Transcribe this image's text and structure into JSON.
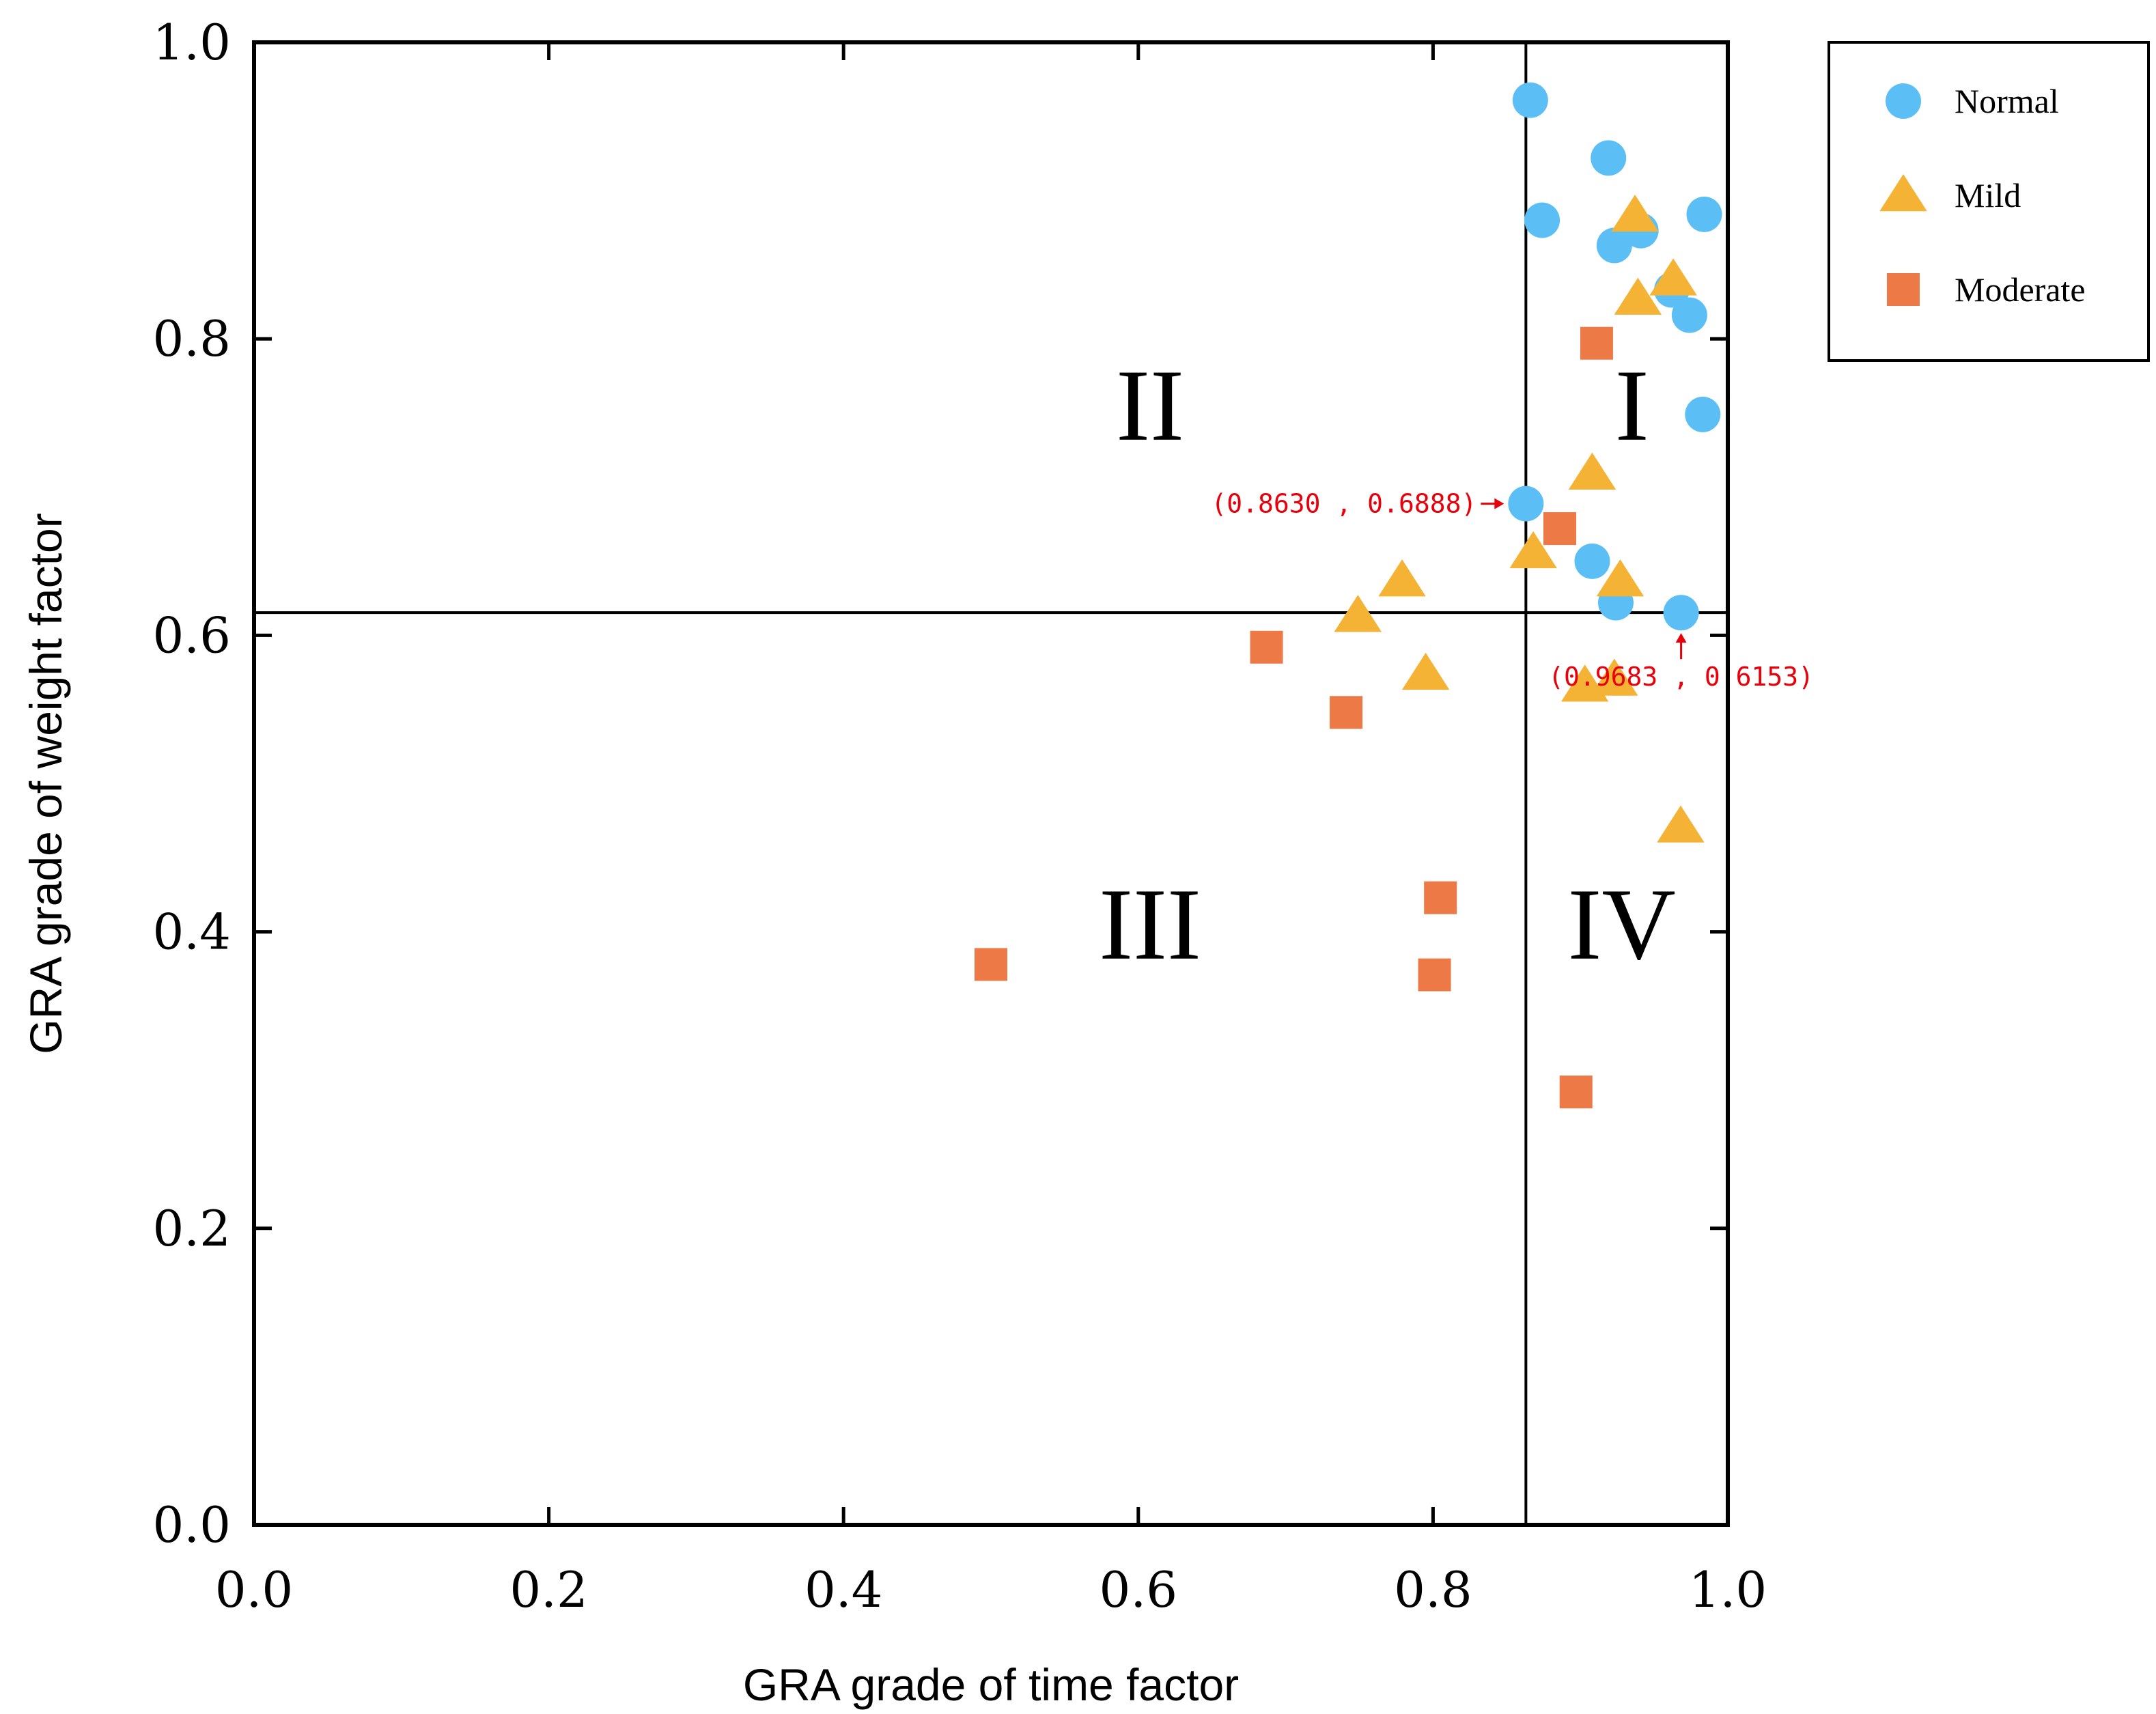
{
  "chart_data": {
    "type": "scatter",
    "xlabel": "GRA grade of time factor",
    "ylabel": "GRA grade of weight factor",
    "xlim": [
      0.0,
      1.0
    ],
    "ylim": [
      0.0,
      1.0
    ],
    "x_ticks": [
      "0.0",
      "0.2",
      "0.4",
      "0.6",
      "0.8",
      "1.0"
    ],
    "y_ticks": [
      "0.0",
      "0.2",
      "0.4",
      "0.6",
      "0.8",
      "1.0"
    ],
    "grid": false,
    "legend_position": "top-right outside",
    "threshold_x": 0.863,
    "threshold_y": 0.6153,
    "quadrants": [
      {
        "label": "I",
        "x": 0.935,
        "y": 0.755
      },
      {
        "label": "II",
        "x": 0.608,
        "y": 0.755
      },
      {
        "label": "III",
        "x": 0.608,
        "y": 0.405
      },
      {
        "label": "IV",
        "x": 0.928,
        "y": 0.405
      }
    ],
    "series": [
      {
        "name": "Normal",
        "marker": "circle",
        "color": "#5BBFF5",
        "points": [
          [
            0.866,
            0.961
          ],
          [
            0.919,
            0.922
          ],
          [
            0.874,
            0.88
          ],
          [
            0.923,
            0.863
          ],
          [
            0.941,
            0.873
          ],
          [
            0.984,
            0.884
          ],
          [
            0.962,
            0.833
          ],
          [
            0.974,
            0.816
          ],
          [
            0.983,
            0.749
          ],
          [
            0.863,
            0.6888
          ],
          [
            0.908,
            0.65
          ],
          [
            0.924,
            0.622
          ],
          [
            0.9683,
            0.6153
          ]
        ]
      },
      {
        "name": "Mild",
        "marker": "triangle",
        "color": "#F5B335",
        "points": [
          [
            0.937,
            0.883
          ],
          [
            0.963,
            0.84
          ],
          [
            0.939,
            0.827
          ],
          [
            0.908,
            0.709
          ],
          [
            0.868,
            0.656
          ],
          [
            0.779,
            0.637
          ],
          [
            0.749,
            0.613
          ],
          [
            0.927,
            0.637
          ],
          [
            0.795,
            0.574
          ],
          [
            0.903,
            0.566
          ],
          [
            0.923,
            0.57
          ],
          [
            0.968,
            0.471
          ]
        ]
      },
      {
        "name": "Moderate",
        "marker": "square",
        "color": "#EC7946",
        "points": [
          [
            0.911,
            0.797
          ],
          [
            0.886,
            0.672
          ],
          [
            0.687,
            0.592
          ],
          [
            0.741,
            0.548
          ],
          [
            0.805,
            0.423
          ],
          [
            0.5,
            0.378
          ],
          [
            0.801,
            0.371
          ],
          [
            0.897,
            0.292
          ]
        ]
      }
    ],
    "annotations": [
      {
        "text": "(0.8630 , 0.6888)",
        "point": [
          0.863,
          0.6888
        ],
        "side": "left"
      },
      {
        "text": "(0.9683 , 0.6153)",
        "point": [
          0.9683,
          0.6153
        ],
        "side": "below"
      }
    ]
  },
  "colors": {
    "annotation": "#E8000B",
    "axis": "#000000"
  }
}
